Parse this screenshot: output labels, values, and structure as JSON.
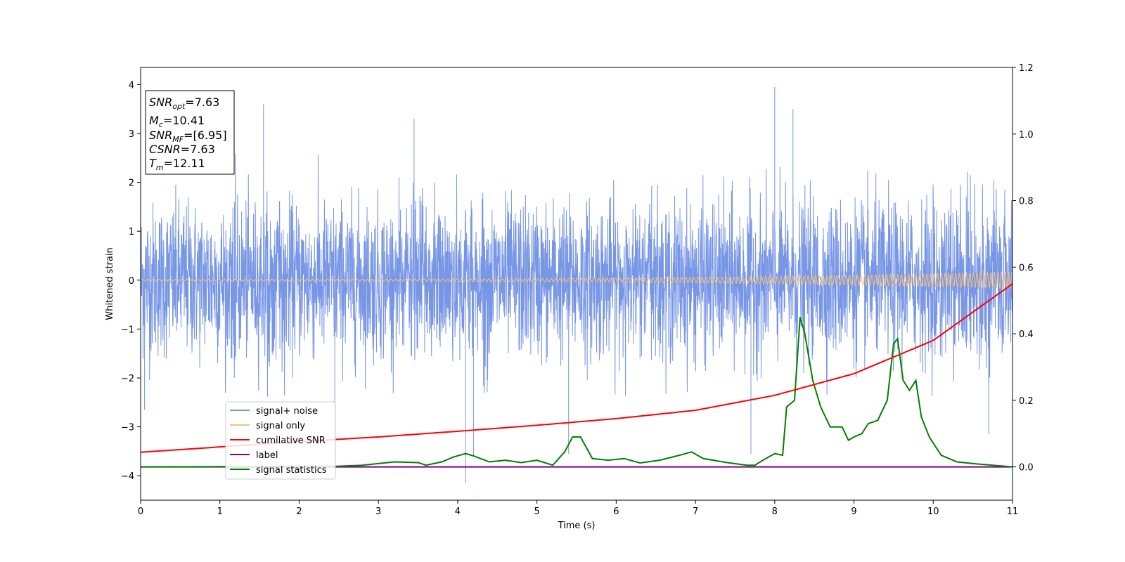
{
  "chart_data": {
    "type": "line",
    "xlabel": "Time (s)",
    "ylabel": "Whitened strain",
    "xlim": [
      0,
      11
    ],
    "ylim": [
      -4.5,
      4.35
    ],
    "y2lim": [
      -0.1,
      1.2
    ],
    "x_ticks": [
      "0",
      "1",
      "2",
      "3",
      "4",
      "5",
      "6",
      "7",
      "8",
      "9",
      "10",
      "11"
    ],
    "y_ticks": [
      "4",
      "3",
      "2",
      "1",
      "0",
      "−1",
      "−2",
      "−3",
      "−4"
    ],
    "y2_ticks": [
      "1.2",
      "1.0",
      "0.8",
      "0.6",
      "0.4",
      "0.2",
      "0.0"
    ],
    "grid": false,
    "legend_position": "lower-left",
    "info_box": {
      "snr_opt": {
        "base": "SNR",
        "sub": "opt",
        "value": "=7.63"
      },
      "mc": {
        "base": "M",
        "sub": "c",
        "value": "=10.41"
      },
      "snr_mf": {
        "base": "SNR",
        "sub": "MF",
        "value": "=[6.95]"
      },
      "csnr": {
        "base": "CSNR",
        "value": "=7.63"
      },
      "tm": {
        "base": "T",
        "sub": "m",
        "value": "=12.11"
      }
    },
    "series": [
      {
        "name": "signal+ noise",
        "color": "#7896e6",
        "axis": "left",
        "style": "dense random noise between about -2.4 and 2.6 with spikes",
        "spikes": [
          [
            1.55,
            3.6
          ],
          [
            8.0,
            3.95
          ],
          [
            8.23,
            3.5
          ],
          [
            4.1,
            -4.15
          ],
          [
            3.45,
            3.3
          ],
          [
            5.4,
            -3.55
          ],
          [
            4.2,
            -3.6
          ],
          [
            7.7,
            -3.55
          ],
          [
            10.7,
            -3.15
          ],
          [
            0.05,
            -2.65
          ],
          [
            2.45,
            -3.65
          ]
        ]
      },
      {
        "name": "signal only",
        "color": "#f5c27a",
        "axis": "left",
        "style": "chirp with amplitude growing toward the end",
        "amplitude_start": 0.02,
        "amplitude_end": 0.17
      },
      {
        "name": "cumilative SNR",
        "color": "#ff0000",
        "axis": "right",
        "points": [
          [
            0,
            0.044
          ],
          [
            1,
            0.06
          ],
          [
            2,
            0.076
          ],
          [
            3,
            0.09
          ],
          [
            4,
            0.107
          ],
          [
            5,
            0.125
          ],
          [
            6,
            0.145
          ],
          [
            7,
            0.17
          ],
          [
            8,
            0.215
          ],
          [
            9,
            0.28
          ],
          [
            10,
            0.38
          ],
          [
            11,
            0.55
          ]
        ]
      },
      {
        "name": "label",
        "color": "#800080",
        "axis": "right",
        "points": [
          [
            0,
            0.0
          ],
          [
            11,
            0.0
          ]
        ]
      },
      {
        "name": "signal statistics",
        "color": "#008000",
        "axis": "right",
        "points": [
          [
            0,
            0.0
          ],
          [
            2.5,
            0.002
          ],
          [
            2.8,
            0.005
          ],
          [
            3.0,
            0.01
          ],
          [
            3.2,
            0.015
          ],
          [
            3.5,
            0.013
          ],
          [
            3.6,
            0.005
          ],
          [
            3.8,
            0.015
          ],
          [
            3.95,
            0.03
          ],
          [
            4.1,
            0.04
          ],
          [
            4.2,
            0.033
          ],
          [
            4.4,
            0.015
          ],
          [
            4.6,
            0.02
          ],
          [
            4.8,
            0.013
          ],
          [
            5.0,
            0.02
          ],
          [
            5.2,
            0.005
          ],
          [
            5.35,
            0.045
          ],
          [
            5.45,
            0.09
          ],
          [
            5.55,
            0.09
          ],
          [
            5.7,
            0.025
          ],
          [
            5.9,
            0.02
          ],
          [
            6.1,
            0.025
          ],
          [
            6.3,
            0.012
          ],
          [
            6.55,
            0.02
          ],
          [
            6.8,
            0.035
          ],
          [
            6.95,
            0.045
          ],
          [
            7.1,
            0.025
          ],
          [
            7.4,
            0.013
          ],
          [
            7.65,
            0.005
          ],
          [
            7.75,
            0.005
          ],
          [
            7.85,
            0.02
          ],
          [
            8.0,
            0.04
          ],
          [
            8.1,
            0.035
          ],
          [
            8.15,
            0.18
          ],
          [
            8.25,
            0.2
          ],
          [
            8.32,
            0.45
          ],
          [
            8.38,
            0.4
          ],
          [
            8.48,
            0.26
          ],
          [
            8.58,
            0.18
          ],
          [
            8.7,
            0.12
          ],
          [
            8.85,
            0.12
          ],
          [
            8.93,
            0.08
          ],
          [
            9.0,
            0.09
          ],
          [
            9.1,
            0.1
          ],
          [
            9.18,
            0.13
          ],
          [
            9.3,
            0.14
          ],
          [
            9.42,
            0.2
          ],
          [
            9.5,
            0.37
          ],
          [
            9.55,
            0.385
          ],
          [
            9.62,
            0.26
          ],
          [
            9.7,
            0.23
          ],
          [
            9.78,
            0.26
          ],
          [
            9.85,
            0.15
          ],
          [
            9.95,
            0.09
          ],
          [
            10.1,
            0.035
          ],
          [
            10.3,
            0.015
          ],
          [
            10.5,
            0.01
          ],
          [
            11,
            0.0
          ]
        ]
      }
    ]
  }
}
